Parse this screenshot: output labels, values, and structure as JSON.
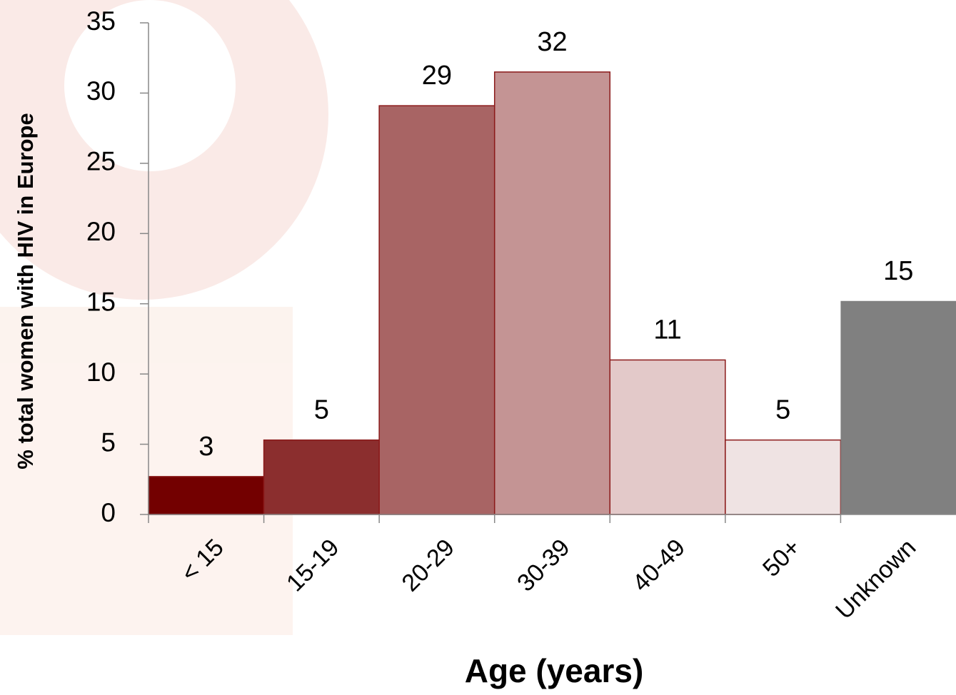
{
  "chart_data": {
    "type": "bar",
    "x_label": "Age (years)",
    "y_label": "% total women with HIV in Europe",
    "categories": [
      "< 15",
      "15-19",
      "20-29",
      "30-39",
      "40-49",
      "50+",
      "Unknown"
    ],
    "values": [
      2.7,
      5.3,
      29.1,
      31.5,
      11.0,
      5.3,
      15.2
    ],
    "value_labels": [
      "3",
      "5",
      "29",
      "32",
      "11",
      "5",
      "15"
    ],
    "colors": [
      "#730000",
      "#8b2e2e",
      "#a86464",
      "#c49494",
      "#e3c9c9",
      "#efe3e3",
      "#808080"
    ],
    "ylim": [
      0,
      35
    ],
    "yticks": [
      0,
      5,
      10,
      15,
      20,
      25,
      30,
      35
    ],
    "grid": false
  }
}
